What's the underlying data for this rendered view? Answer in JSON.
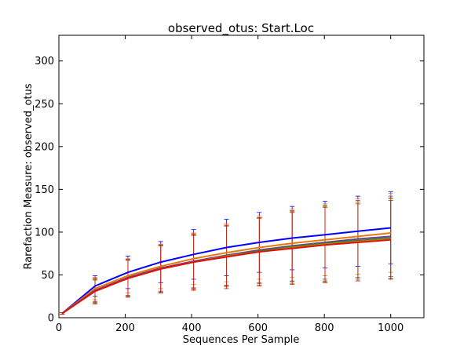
{
  "chart_data": {
    "type": "line",
    "title": "observed_otus: Start.Loc",
    "xlabel": "Sequences Per Sample",
    "ylabel": "Rarefaction Measure: observed_otus",
    "xlim": [
      0,
      1100
    ],
    "ylim": [
      0,
      330
    ],
    "xticks": [
      0,
      200,
      400,
      600,
      800,
      1000
    ],
    "yticks": [
      0,
      50,
      100,
      150,
      200,
      250,
      300
    ],
    "grid": false,
    "x": [
      10,
      109,
      208,
      307,
      406,
      505,
      604,
      703,
      802,
      901,
      1000
    ],
    "series": [
      {
        "color": "#0000ff",
        "values": [
          5,
          37,
          53,
          65,
          74,
          82,
          88,
          93,
          97,
          101,
          105
        ],
        "err": [
          1,
          12,
          19,
          24,
          29,
          33,
          35,
          37,
          39,
          41,
          42
        ]
      },
      {
        "color": "#e87a0c",
        "values": [
          5,
          34,
          49,
          60,
          69,
          76,
          82,
          87,
          91,
          95,
          99
        ],
        "err": [
          1,
          13,
          20,
          26,
          30,
          34,
          37,
          40,
          42,
          44,
          46
        ]
      },
      {
        "color": "#6f3f8f",
        "values": [
          5,
          32,
          47,
          58,
          66,
          73,
          79,
          84,
          88,
          92,
          95
        ],
        "err": [
          1,
          13,
          21,
          27,
          31,
          35,
          38,
          41,
          43,
          45,
          47
        ]
      },
      {
        "color": "#2a7d2a",
        "values": [
          5,
          31,
          46,
          57,
          65,
          72,
          78,
          83,
          87,
          90,
          93
        ],
        "err": [
          1,
          13,
          21,
          27,
          31,
          35,
          38,
          41,
          44,
          45,
          47
        ]
      },
      {
        "color": "#b8860b",
        "values": [
          5,
          31,
          46,
          57,
          65,
          72,
          77,
          82,
          86,
          89,
          92
        ],
        "err": [
          1,
          14,
          22,
          28,
          32,
          36,
          39,
          42,
          44,
          46,
          47
        ]
      },
      {
        "color": "#e01010",
        "values": [
          5,
          31,
          46,
          57,
          65,
          71,
          77,
          81,
          85,
          88,
          91
        ],
        "err": [
          1,
          15,
          22,
          28,
          33,
          37,
          40,
          42,
          44,
          45,
          46
        ]
      }
    ]
  }
}
